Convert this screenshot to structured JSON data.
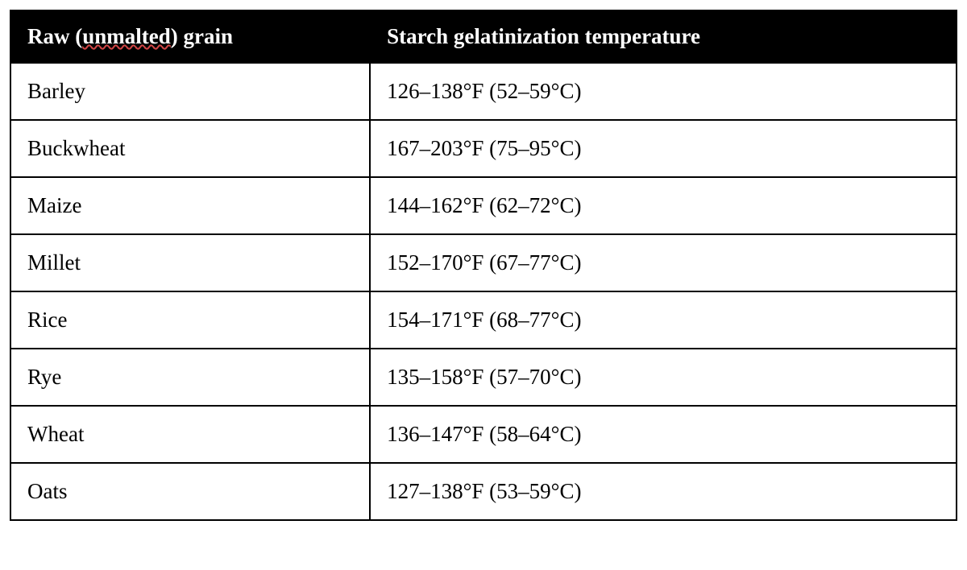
{
  "table": {
    "columns": [
      {
        "label_prefix": "Raw (",
        "label_underlined": "unmalted",
        "label_suffix": ") grain"
      },
      {
        "label": "Starch gelatinization temperature"
      }
    ],
    "rows": [
      {
        "grain": "Barley",
        "temp": "126–138°F (52–59°C)"
      },
      {
        "grain": "Buckwheat",
        "temp": "167–203°F (75–95°C)"
      },
      {
        "grain": "Maize",
        "temp": "144–162°F (62–72°C)"
      },
      {
        "grain": "Millet",
        "temp": "152–170°F (67–77°C)"
      },
      {
        "grain": "Rice",
        "temp": "154–171°F (68–77°C)"
      },
      {
        "grain": "Rye",
        "temp": "135–158°F (57–70°C)"
      },
      {
        "grain": "Wheat",
        "temp": "136–147°F (58–64°C)"
      },
      {
        "grain": "Oats",
        "temp": "127–138°F (53–59°C)"
      }
    ],
    "column_widths_pct": [
      38,
      62
    ],
    "header_bg": "#000000",
    "header_fg": "#ffffff",
    "cell_bg": "#ffffff",
    "cell_fg": "#000000",
    "border_color": "#000000",
    "font_family": "Georgia",
    "header_fontsize_pt": 20,
    "cell_fontsize_pt": 20,
    "underline_color": "#d14545"
  }
}
